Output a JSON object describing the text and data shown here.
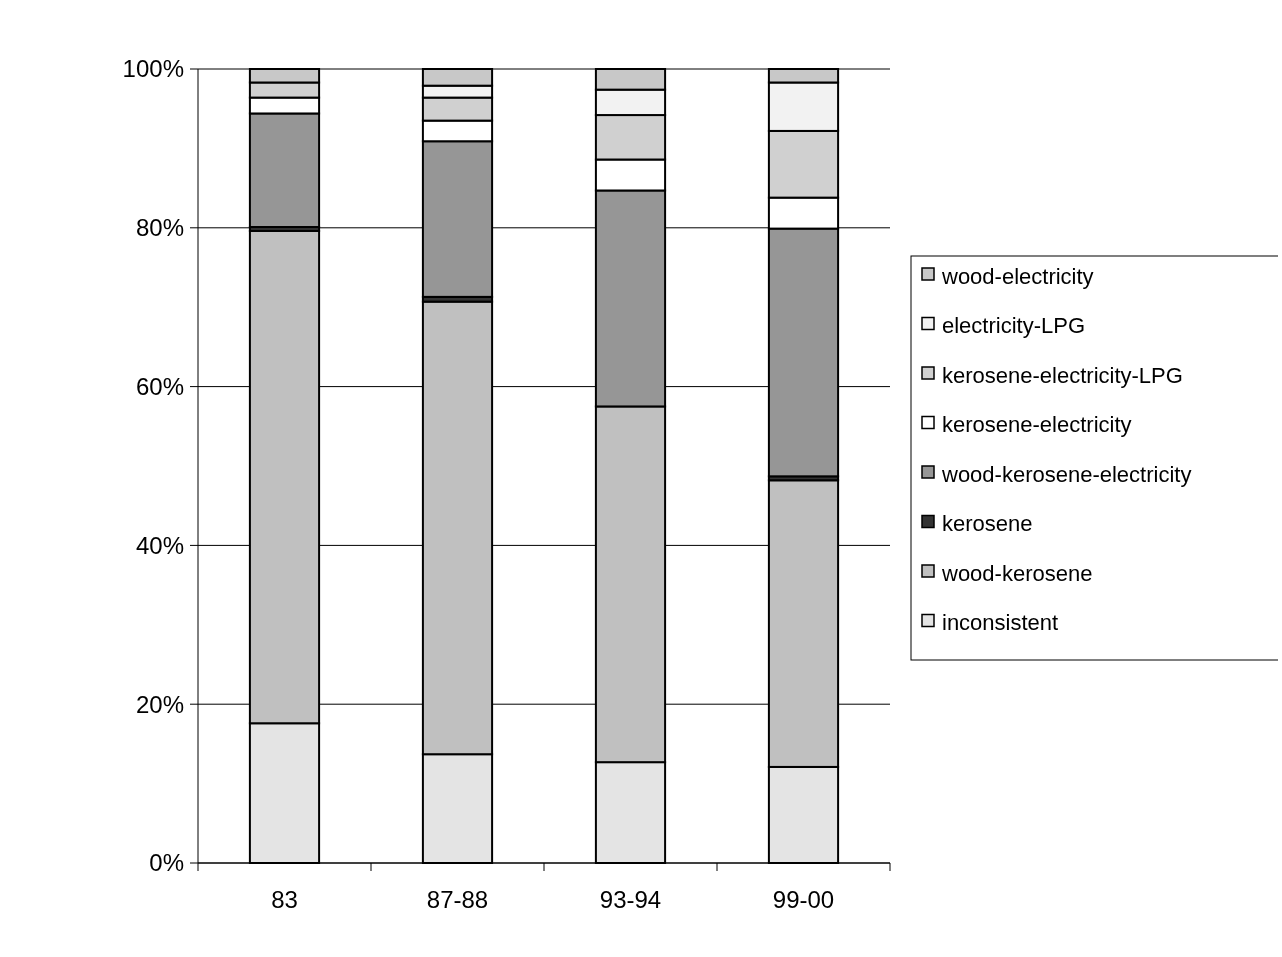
{
  "chart_data": {
    "type": "bar",
    "stacked": true,
    "categories": [
      "83",
      "87-88",
      "93-94",
      "99-00"
    ],
    "series": [
      {
        "name": "inconsistent",
        "color": "#e4e4e4",
        "values": [
          17.6,
          13.7,
          12.7,
          12.1
        ]
      },
      {
        "name": "wood-kerosene",
        "color": "#c0c0c0",
        "values": [
          62.0,
          57.0,
          44.8,
          36.1
        ]
      },
      {
        "name": "kerosene",
        "color": "#333333",
        "values": [
          0.5,
          0.6,
          0,
          0.5
        ]
      },
      {
        "name": "wood-kerosene-electricity",
        "color": "#969696",
        "values": [
          14.3,
          19.6,
          27.2,
          31.2
        ]
      },
      {
        "name": "kerosene-electricity",
        "color": "#ffffff",
        "values": [
          2.0,
          2.6,
          3.9,
          3.9
        ]
      },
      {
        "name": "kerosene-electricity-LPG",
        "color": "#d0d0d0",
        "values": [
          1.9,
          2.9,
          5.6,
          8.4
        ]
      },
      {
        "name": "electricity-LPG",
        "color": "#f2f2f2",
        "values": [
          0,
          1.5,
          3.2,
          6.1
        ]
      },
      {
        "name": "wood-electricity",
        "color": "#c8c8c8",
        "values": [
          1.7,
          2.1,
          2.6,
          1.7
        ]
      }
    ],
    "ylim": [
      0,
      100
    ],
    "yticks": [
      {
        "value": 0,
        "label": "0%"
      },
      {
        "value": 20,
        "label": "20%"
      },
      {
        "value": 40,
        "label": "40%"
      },
      {
        "value": 60,
        "label": "60%"
      },
      {
        "value": 80,
        "label": "80%"
      },
      {
        "value": 100,
        "label": "100%"
      }
    ],
    "grid": "y",
    "legend": "right"
  }
}
